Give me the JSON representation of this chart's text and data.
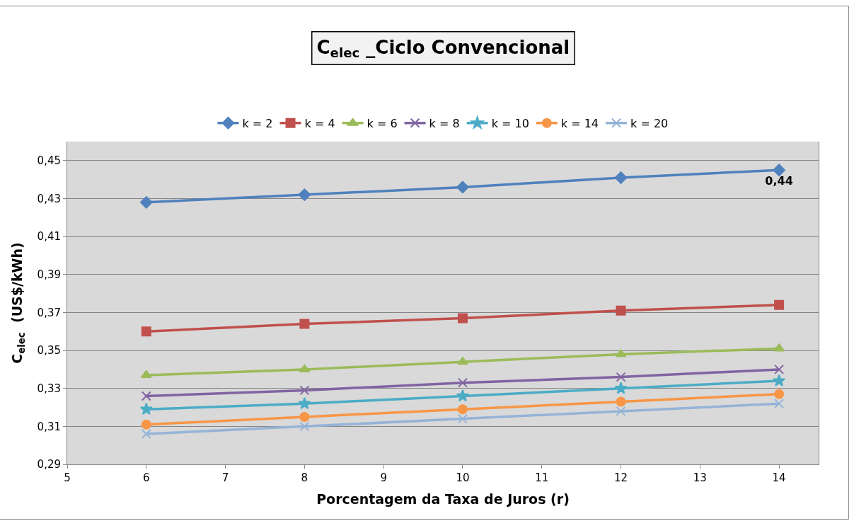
{
  "chart_data": {
    "type": "line",
    "title": "C$_{elec}$ _Ciclo Convencional",
    "xlabel": "Porcentagem da Taxa de Juros (r)",
    "ylabel": "C$_{elec}$  (US$/kWh)",
    "x": [
      6,
      8,
      10,
      12,
      14
    ],
    "series": [
      {
        "name": "k = 2",
        "color": "#4f81bd",
        "marker": "diamond",
        "values": [
          0.428,
          0.432,
          0.436,
          0.441,
          0.445
        ],
        "value_labels": [
          null,
          null,
          null,
          null,
          "0,44"
        ]
      },
      {
        "name": "k = 4",
        "color": "#c0504d",
        "marker": "square",
        "values": [
          0.36,
          0.364,
          0.367,
          0.371,
          0.374
        ]
      },
      {
        "name": "k = 6",
        "color": "#9bbb59",
        "marker": "triangle",
        "values": [
          0.337,
          0.34,
          0.344,
          0.348,
          0.351
        ]
      },
      {
        "name": "k = 8",
        "color": "#8064a2",
        "marker": "cross",
        "values": [
          0.326,
          0.329,
          0.333,
          0.336,
          0.34
        ]
      },
      {
        "name": "k = 10",
        "color": "#4bacc6",
        "marker": "star",
        "values": [
          0.319,
          0.322,
          0.326,
          0.33,
          0.334
        ]
      },
      {
        "name": "k = 14",
        "color": "#f79646",
        "marker": "circle",
        "values": [
          0.311,
          0.315,
          0.319,
          0.323,
          0.327
        ]
      },
      {
        "name": "k = 20",
        "color": "#95b3d7",
        "marker": "cross",
        "values": [
          0.306,
          0.31,
          0.314,
          0.318,
          0.322
        ]
      }
    ],
    "xlim": [
      5,
      14.5
    ],
    "xticks": [
      5,
      6,
      7,
      8,
      9,
      10,
      11,
      12,
      13,
      14
    ],
    "ylim": [
      0.29,
      0.46
    ],
    "yticks": [
      {
        "value": 0.29,
        "label": "0,29"
      },
      {
        "value": 0.31,
        "label": "0,31"
      },
      {
        "value": 0.33,
        "label": "0,33"
      },
      {
        "value": 0.35,
        "label": "0,35"
      },
      {
        "value": 0.37,
        "label": "0,37"
      },
      {
        "value": 0.39,
        "label": "0,39"
      },
      {
        "value": 0.41,
        "label": "0,41"
      },
      {
        "value": 0.43,
        "label": "0,43"
      },
      {
        "value": 0.45,
        "label": "0,45"
      }
    ],
    "grid": "y",
    "legend": "top",
    "line_style": "solid"
  }
}
